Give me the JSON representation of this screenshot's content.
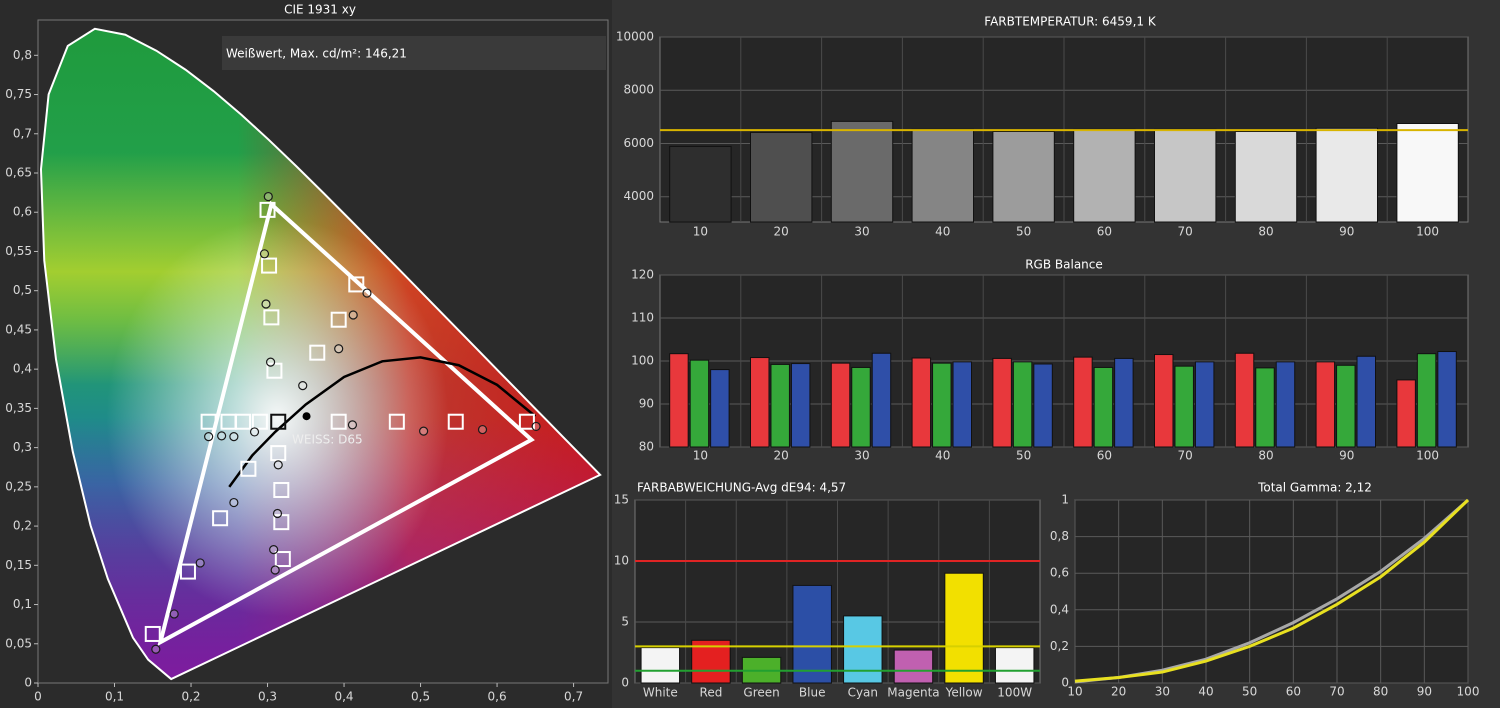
{
  "chart_data": [
    {
      "type": "scatter",
      "title": "CIE 1931 xy",
      "annotation": "Weißwert, Max. cd/m²: 146,21",
      "white_point_label": "WEISS: D65",
      "xlim": [
        0,
        0.745
      ],
      "ylim": [
        0,
        0.845
      ],
      "grid": false,
      "xticks": [
        0,
        {
          "value": 0.1,
          "label": "0,1"
        },
        {
          "value": 0.2,
          "label": "0,2"
        },
        {
          "value": 0.3,
          "label": "0,3"
        },
        {
          "value": 0.4,
          "label": "0,4"
        },
        {
          "value": 0.5,
          "label": "0,5"
        },
        {
          "value": 0.6,
          "label": "0,6"
        },
        {
          "value": 0.7,
          "label": "0,7"
        }
      ],
      "yticks": [
        0,
        {
          "value": 0.05,
          "label": "0,05"
        },
        {
          "value": 0.1,
          "label": "0,1"
        },
        {
          "value": 0.15,
          "label": "0,15"
        },
        {
          "value": 0.2,
          "label": "0,2"
        },
        {
          "value": 0.25,
          "label": "0,25"
        },
        {
          "value": 0.3,
          "label": "0,3"
        },
        {
          "value": 0.35,
          "label": "0,35"
        },
        {
          "value": 0.4,
          "label": "0,4"
        },
        {
          "value": 0.45,
          "label": "0,45"
        },
        {
          "value": 0.5,
          "label": "0,5"
        },
        {
          "value": 0.55,
          "label": "0,55"
        },
        {
          "value": 0.6,
          "label": "0,6"
        },
        {
          "value": 0.65,
          "label": "0,65"
        },
        {
          "value": 0.7,
          "label": "0,7"
        },
        {
          "value": 0.75,
          "label": "0,75"
        },
        {
          "value": 0.8,
          "label": "0,8"
        }
      ],
      "spectral_locus": {
        "x": [
          0.1741,
          0.144,
          0.1241,
          0.0913,
          0.0687,
          0.0454,
          0.0235,
          0.0082,
          0.0039,
          0.0139,
          0.0389,
          0.0743,
          0.1142,
          0.1547,
          0.1929,
          0.2296,
          0.2658,
          0.3016,
          0.3373,
          0.3731,
          0.4087,
          0.4441,
          0.4788,
          0.5125,
          0.5448,
          0.5752,
          0.6029,
          0.627,
          0.6482,
          0.6658,
          0.6801,
          0.7347
        ],
        "y": [
          0.005,
          0.0297,
          0.0578,
          0.1327,
          0.2007,
          0.295,
          0.4127,
          0.5384,
          0.6548,
          0.7502,
          0.812,
          0.8338,
          0.8262,
          0.8059,
          0.7816,
          0.7543,
          0.7243,
          0.6923,
          0.6589,
          0.6245,
          0.5896,
          0.5547,
          0.5202,
          0.4866,
          0.4544,
          0.4242,
          0.3965,
          0.3725,
          0.3514,
          0.334,
          0.3197,
          0.2653
        ]
      },
      "series": [
        {
          "marker": "polygon",
          "color": "#ffffff",
          "x": [
            0.305,
            0.645,
            0.16
          ],
          "y": [
            0.61,
            0.31,
            0.052
          ]
        },
        {
          "marker": "line",
          "color": "#000000",
          "x": [
            0.25,
            0.28,
            0.31,
            0.35,
            0.4,
            0.45,
            0.5,
            0.55,
            0.6,
            0.65
          ],
          "y": [
            0.25,
            0.29,
            0.32,
            0.355,
            0.39,
            0.41,
            0.415,
            0.405,
            0.38,
            0.34
          ]
        },
        {
          "marker": "square",
          "color": "#ffffff",
          "x": [
            0.223,
            0.249,
            0.268,
            0.29,
            0.3,
            0.302,
            0.305,
            0.309,
            0.365,
            0.393,
            0.416,
            0.393,
            0.469,
            0.546,
            0.639,
            0.275,
            0.238,
            0.196,
            0.15,
            0.314,
            0.318,
            0.318,
            0.32
          ],
          "y": [
            0.333,
            0.333,
            0.333,
            0.333,
            0.603,
            0.532,
            0.466,
            0.398,
            0.421,
            0.463,
            0.508,
            0.333,
            0.333,
            0.333,
            0.333,
            0.273,
            0.21,
            0.142,
            0.0625,
            0.293,
            0.246,
            0.205,
            0.158
          ]
        },
        {
          "marker": "square",
          "color": "#111111",
          "x": [
            0.314
          ],
          "y": [
            0.333
          ]
        },
        {
          "marker": "circle",
          "color": "#1a1a1a",
          "x": [
            0.301,
            0.296,
            0.298,
            0.304,
            0.43,
            0.412,
            0.393,
            0.346,
            0.314,
            0.313,
            0.308,
            0.31,
            0.223,
            0.24,
            0.256,
            0.283,
            0.411,
            0.504,
            0.581,
            0.651,
            0.256,
            0.212,
            0.178,
            0.154
          ],
          "y": [
            0.62,
            0.547,
            0.483,
            0.409,
            0.497,
            0.469,
            0.426,
            0.379,
            0.278,
            0.216,
            0.17,
            0.144,
            0.314,
            0.315,
            0.314,
            0.32,
            0.329,
            0.321,
            0.323,
            0.327,
            0.23,
            0.153,
            0.088,
            0.043
          ]
        },
        {
          "marker": "dot",
          "color": "#000000",
          "x": [
            0.351
          ],
          "y": [
            0.34
          ]
        }
      ]
    },
    {
      "type": "bar",
      "title": "FARBTEMPERATUR: 6459,1 K",
      "categories": [
        10,
        20,
        30,
        40,
        50,
        60,
        70,
        80,
        90,
        100
      ],
      "values": [
        5890,
        6415,
        6830,
        6530,
        6450,
        6530,
        6530,
        6450,
        6570,
        6750
      ],
      "colors": [
        "#2e2e2e",
        "#4f4f4f",
        "#6a6a6a",
        "#858585",
        "#9c9c9c",
        "#b2b2b2",
        "#c6c6c6",
        "#d9d9d9",
        "#e9e9e9",
        "#f8f8f8"
      ],
      "reference_lines": [
        {
          "value": 6500,
          "color": "#d8b400"
        }
      ],
      "ylim": [
        3050,
        10000
      ],
      "yticks": [
        4000,
        6000,
        8000,
        10000
      ],
      "grid": true
    },
    {
      "type": "grouped-bar",
      "title": "RGB Balance",
      "categories": [
        10,
        20,
        30,
        40,
        50,
        60,
        70,
        80,
        90,
        100
      ],
      "series": [
        {
          "color": "#e8383c",
          "values": [
            101.7,
            100.8,
            99.5,
            100.7,
            100.6,
            100.9,
            101.5,
            101.8,
            99.8,
            95.6
          ]
        },
        {
          "color": "#35a83a",
          "values": [
            100.2,
            99.2,
            98.5,
            99.5,
            99.8,
            98.5,
            98.8,
            98.4,
            99.0,
            101.7
          ]
        },
        {
          "color": "#2f4fa8",
          "values": [
            98.0,
            99.4,
            101.8,
            99.8,
            99.3,
            100.6,
            99.8,
            99.8,
            101.1,
            102.2
          ]
        }
      ],
      "ylim": [
        80,
        120
      ],
      "yticks": [
        80,
        90,
        100,
        110,
        120
      ],
      "grid": true
    },
    {
      "type": "bar",
      "title": "FARBABWEICHUNG-Avg dE94: 4,57",
      "categories": [
        "White",
        "Red",
        "Green",
        "Blue",
        "Cyan",
        "Magenta",
        "Yellow",
        "100W"
      ],
      "values": [
        2.9,
        3.5,
        2.1,
        8.0,
        5.5,
        2.7,
        9.0,
        2.9
      ],
      "colors": [
        "#f4f4f4",
        "#e42020",
        "#4cb02a",
        "#2c4fa6",
        "#58c8e4",
        "#c060b0",
        "#f2e000",
        "#f4f4f4"
      ],
      "reference_lines": [
        {
          "value": 10,
          "color": "#e02424"
        },
        {
          "value": 3,
          "color": "#d6d000"
        },
        {
          "value": 1,
          "color": "#22a030"
        }
      ],
      "ylim": [
        0,
        15
      ],
      "yticks": [
        0,
        5,
        10,
        15
      ],
      "grid": true
    },
    {
      "type": "line",
      "title": "Total Gamma: 2,12",
      "x": [
        10,
        20,
        30,
        40,
        50,
        60,
        70,
        80,
        90,
        100
      ],
      "series": [
        {
          "color": "#a8a8a8",
          "values": [
            0.006,
            0.03,
            0.07,
            0.13,
            0.22,
            0.33,
            0.46,
            0.61,
            0.79,
            1
          ]
        },
        {
          "color": "#e8e020",
          "values": [
            0.01,
            0.03,
            0.06,
            0.12,
            0.2,
            0.3,
            0.43,
            0.58,
            0.77,
            1
          ]
        }
      ],
      "xlim": [
        10,
        100
      ],
      "xticks": [
        10,
        20,
        30,
        40,
        50,
        60,
        70,
        80,
        90,
        100
      ],
      "ylim": [
        0,
        1
      ],
      "yticks": [
        0,
        {
          "value": 0.2,
          "label": "0,2"
        },
        {
          "value": 0.4,
          "label": "0,4"
        },
        {
          "value": 0.6,
          "label": "0,6"
        },
        {
          "value": 0.8,
          "label": "0,8"
        },
        1
      ],
      "grid": true
    }
  ]
}
